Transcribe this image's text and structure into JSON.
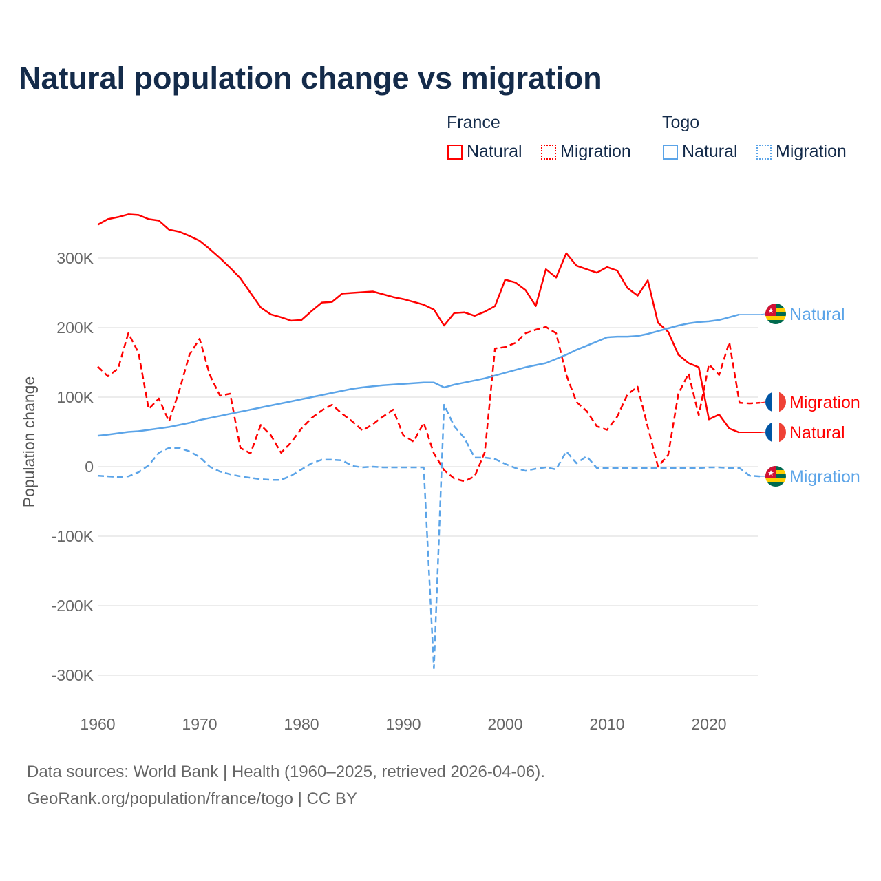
{
  "title": "Natural population change vs migration",
  "legend": {
    "groups": [
      {
        "name": "France",
        "color": "#ff0000",
        "items": [
          "Natural",
          "Migration"
        ]
      },
      {
        "name": "Togo",
        "color": "#5ba4e8",
        "items": [
          "Natural",
          "Migration"
        ]
      }
    ]
  },
  "footer": {
    "line1": "Data sources: World Bank | Health (1960–2025, retrieved 2026-04-06).",
    "line2": "GeoRank.org/population/france/togo | CC BY"
  },
  "chart_data": {
    "type": "line",
    "title": "Natural population change vs migration",
    "ylabel": "Population change",
    "xlabel": "",
    "xlim": [
      1960,
      2025
    ],
    "ylim": [
      -300000,
      300000
    ],
    "xticks": [
      "1960",
      "1970",
      "1980",
      "1990",
      "2000",
      "2010",
      "2020"
    ],
    "yticks": [
      "300K",
      "200K",
      "100K",
      "0",
      "-100K",
      "-200K",
      "-300K"
    ],
    "ytick_values": [
      300,
      200,
      100,
      0,
      -100,
      -200,
      -300
    ],
    "units": "thousands",
    "grid": true,
    "legend_position": "top-right",
    "start_year": 1960,
    "series": [
      {
        "name": "France Natural",
        "country": "France",
        "kind": "Natural",
        "color": "#ff0000",
        "dash": false,
        "end_label": "Natural",
        "values": [
          348,
          356,
          359,
          363,
          362,
          356,
          354,
          341,
          338,
          332,
          325,
          313,
          300,
          286,
          271,
          250,
          229,
          219,
          215,
          210,
          211,
          224,
          236,
          237,
          249,
          250,
          251,
          252,
          248,
          244,
          241,
          237,
          233,
          226,
          203,
          221,
          222,
          217,
          223,
          231,
          269,
          265,
          254,
          231,
          284,
          272,
          307,
          289,
          284,
          279,
          287,
          282,
          257,
          246,
          268,
          207,
          194,
          161,
          149,
          143,
          68,
          75,
          55,
          49
        ]
      },
      {
        "name": "France Migration",
        "country": "France",
        "kind": "Migration",
        "color": "#ff0000",
        "dash": true,
        "end_label": "Migration",
        "values": [
          144,
          130,
          141,
          192,
          164,
          83,
          98,
          65,
          109,
          161,
          184,
          132,
          102,
          105,
          27,
          19,
          60,
          45,
          20,
          35,
          55,
          70,
          81,
          89,
          76,
          65,
          52,
          61,
          72,
          82,
          45,
          36,
          63,
          19,
          -5,
          -17,
          -21,
          -14,
          21,
          170,
          172,
          178,
          192,
          197,
          201,
          192,
          132,
          93,
          80,
          58,
          53,
          72,
          104,
          115,
          57,
          0,
          17,
          105,
          134,
          74,
          147,
          132,
          179,
          92,
          91,
          92
        ]
      },
      {
        "name": "Togo Natural",
        "country": "Togo",
        "kind": "Natural",
        "color": "#5ba4e8",
        "dash": false,
        "end_label": "Natural",
        "values": [
          44.5,
          46,
          48,
          50,
          51,
          53,
          55,
          57,
          60,
          63,
          67,
          70,
          73,
          76,
          79,
          82,
          85,
          88,
          91,
          94,
          97,
          100,
          103,
          106,
          109,
          112,
          114,
          115.5,
          117,
          118,
          119,
          120,
          121,
          121,
          114,
          118,
          121,
          124,
          127,
          131,
          135,
          139,
          143,
          146,
          149,
          155,
          161,
          168,
          174,
          180,
          186,
          187,
          187,
          188,
          191,
          195,
          199,
          203,
          206,
          208,
          209,
          211,
          215,
          219
        ]
      },
      {
        "name": "Togo Migration",
        "country": "Togo",
        "kind": "Migration",
        "color": "#5ba4e8",
        "dash": true,
        "end_label": "Migration",
        "values": [
          -13,
          -14,
          -15,
          -14,
          -8,
          2,
          20,
          27,
          27,
          22,
          14,
          0,
          -7,
          -11,
          -14,
          -16,
          -18,
          -19,
          -19,
          -13,
          -4,
          5,
          10,
          10,
          9,
          1,
          -1,
          0,
          -1,
          -1,
          -1,
          -1,
          -1,
          -290,
          89,
          58,
          41,
          13,
          13,
          11,
          4,
          -2,
          -6,
          -3,
          -1,
          -4,
          22,
          5,
          15,
          -2,
          -2,
          -2,
          -2,
          -2,
          -2,
          -2,
          -2,
          -2,
          -2,
          -2,
          -1,
          -1,
          -2,
          -2,
          -13,
          -14
        ]
      }
    ]
  }
}
